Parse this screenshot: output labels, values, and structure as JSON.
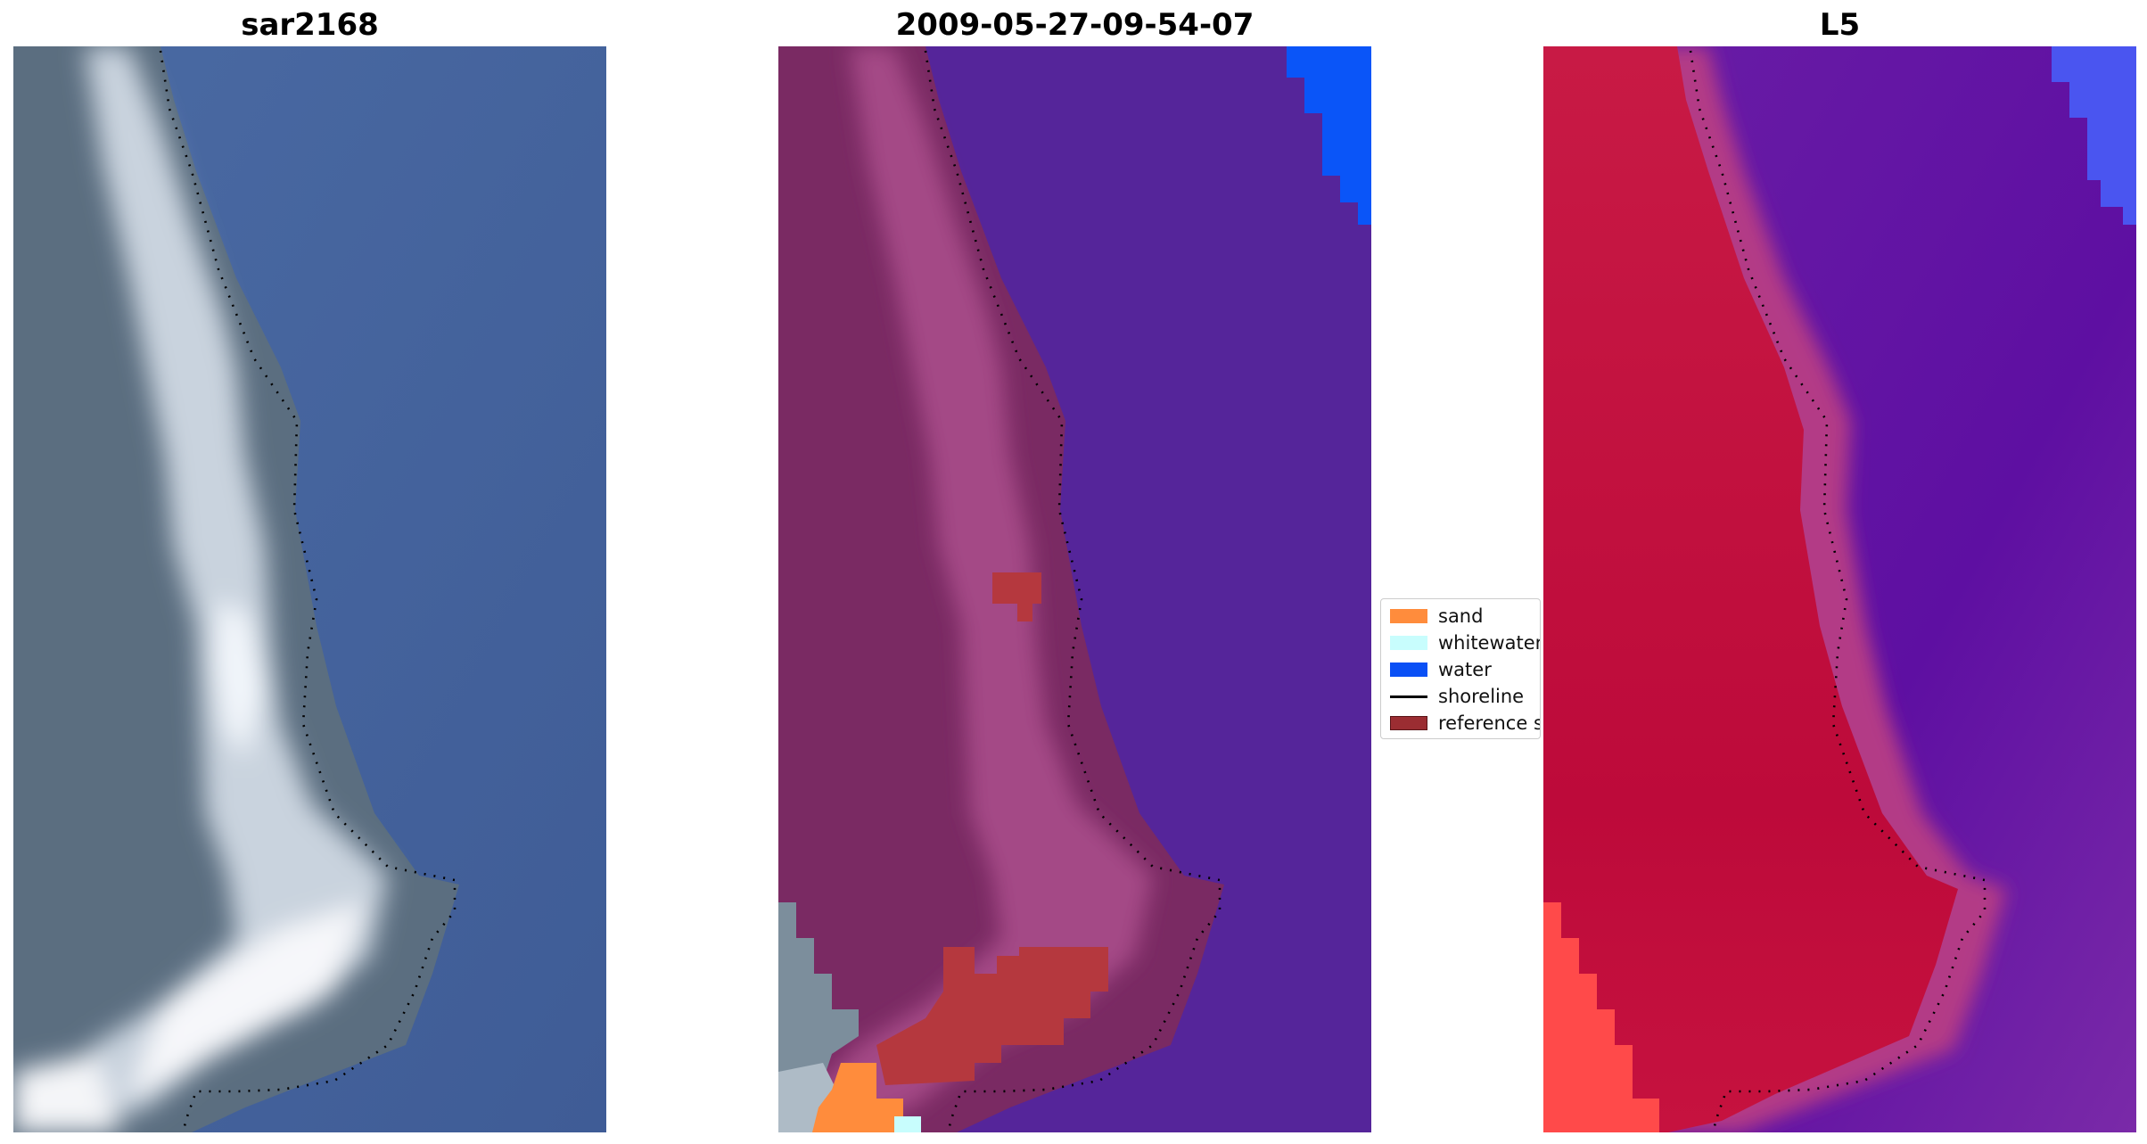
{
  "panels": [
    {
      "title": "sar2168"
    },
    {
      "title": "2009-05-27-09-54-07"
    },
    {
      "title": "L5"
    }
  ],
  "legend": {
    "items": [
      {
        "label": "sand",
        "color": "#ff8c3c",
        "kind": "patch"
      },
      {
        "label": "whitewater",
        "color": "#c8fdfd",
        "kind": "patch"
      },
      {
        "label": "water",
        "color": "#0a50f5",
        "kind": "patch"
      },
      {
        "label": "shoreline",
        "color": "#000000",
        "kind": "line"
      },
      {
        "label": "reference s",
        "color": "#9b2d32",
        "kind": "patch"
      }
    ]
  },
  "colors": {
    "ocean_rgb": "#45629a",
    "land_rgb": "#5e7080",
    "surf_rgb": "#e8eef5",
    "class_water_region": "#55259a",
    "class_land": "#7a2a63",
    "class_sand": "#ff8c3c",
    "class_blue_water": "#0a55f8",
    "class_reference": "#b5383e",
    "prob_land": "#c4123f",
    "prob_water": "#6a12a0",
    "prob_edge": "#b33a86",
    "prob_blue": "#4a55f0",
    "prob_red": "#ff4040"
  }
}
